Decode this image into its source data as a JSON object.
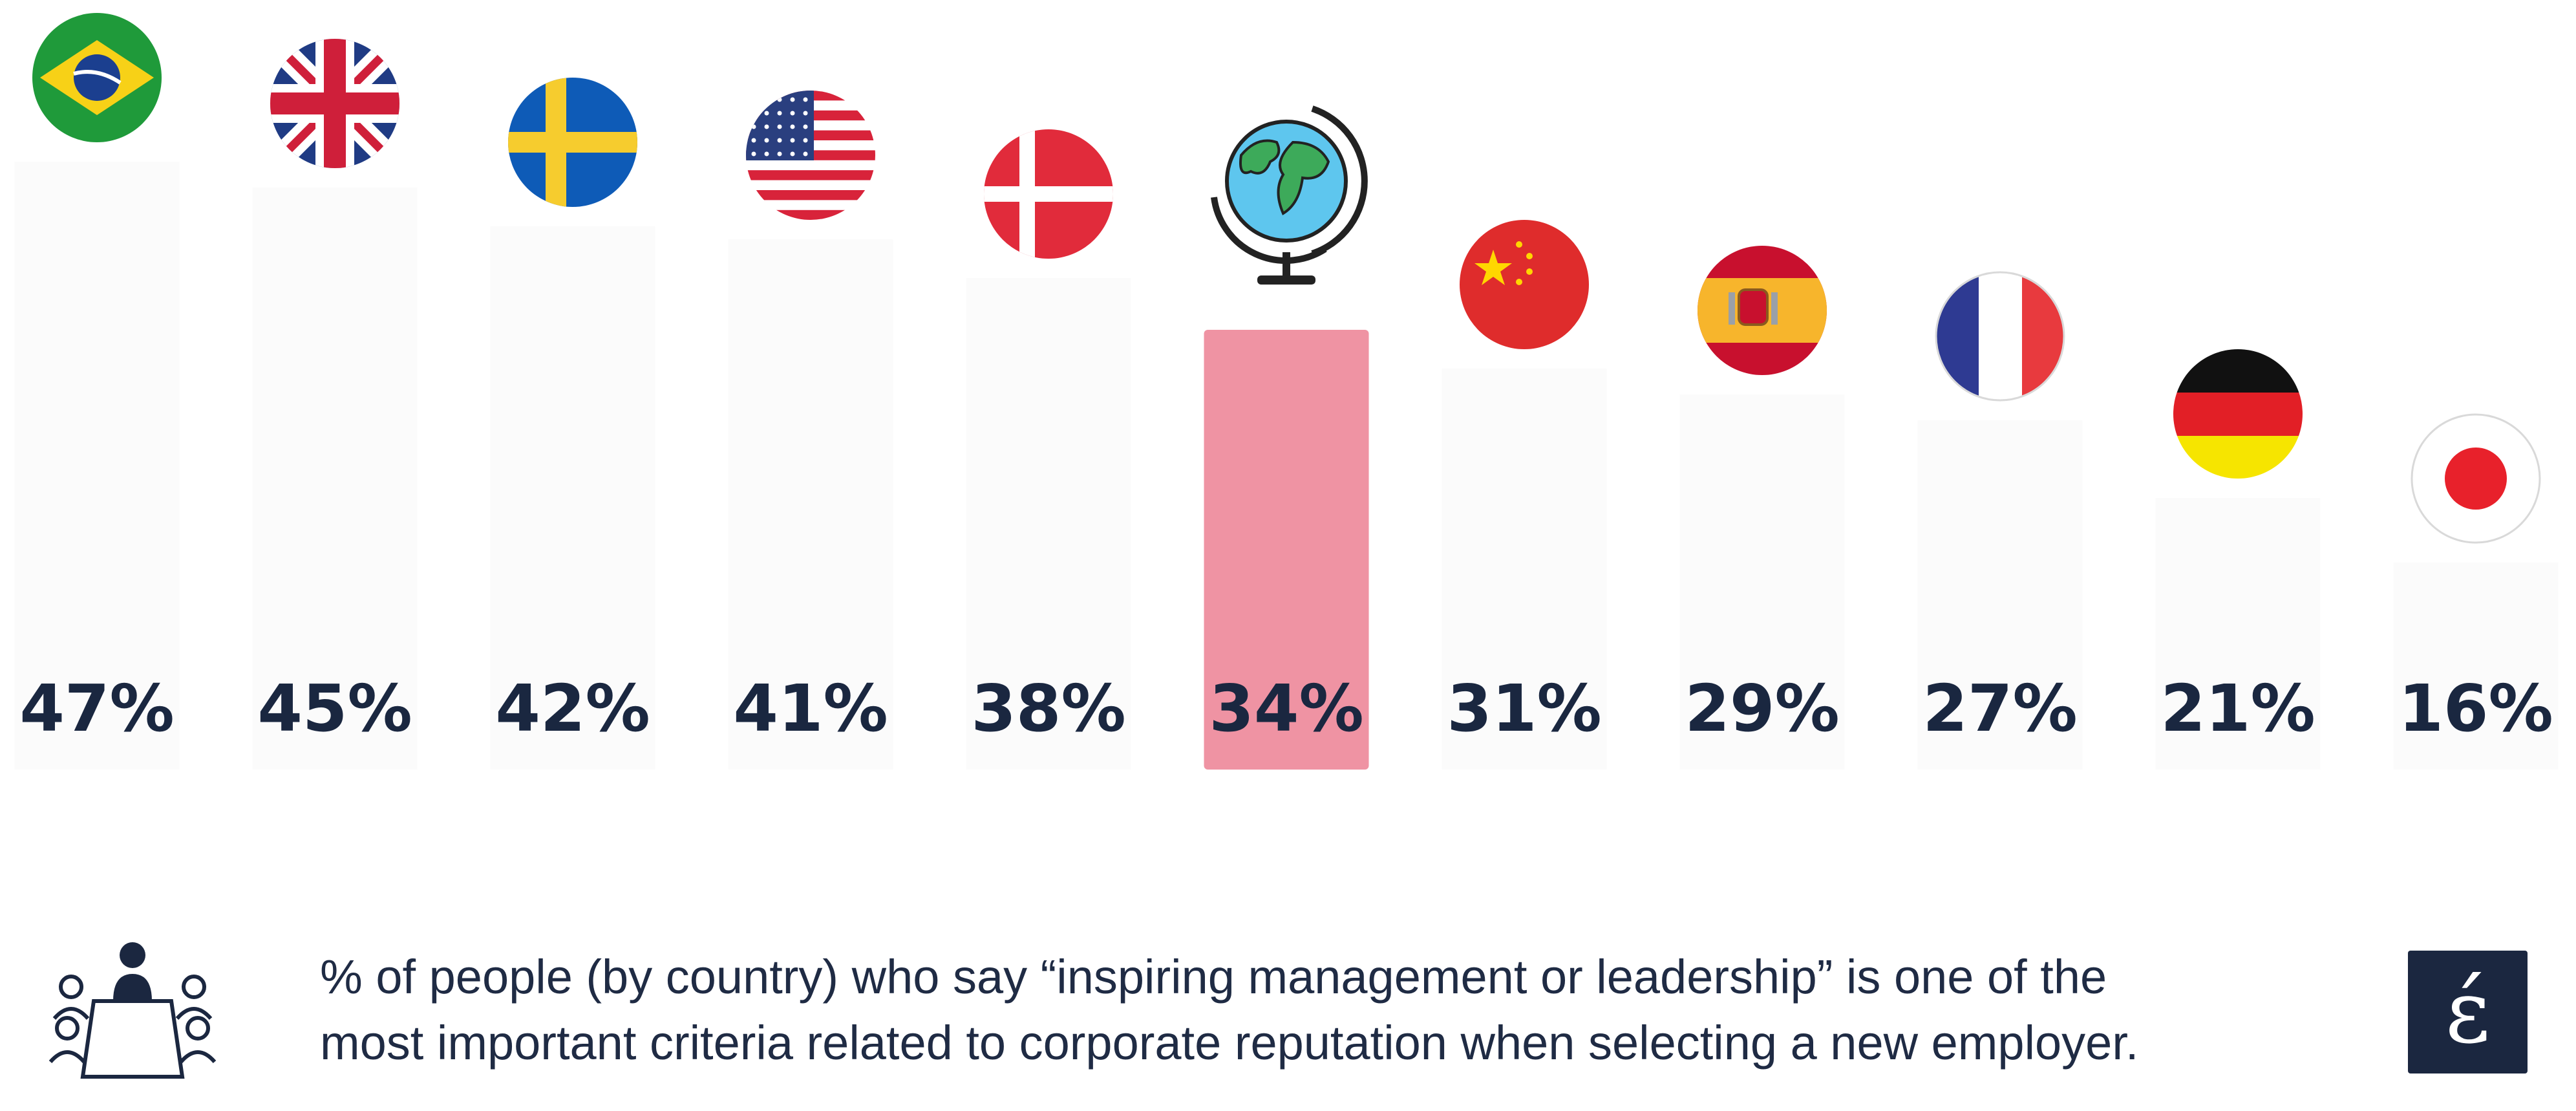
{
  "chart_data": {
    "type": "bar",
    "categories": [
      "Brazil",
      "United Kingdom",
      "Sweden",
      "United States",
      "Denmark",
      "Global",
      "China",
      "Spain",
      "France",
      "Germany",
      "Japan"
    ],
    "values": [
      47,
      45,
      42,
      41,
      38,
      34,
      31,
      29,
      27,
      21,
      16
    ],
    "value_labels": [
      "47%",
      "45%",
      "42%",
      "41%",
      "38%",
      "34%",
      "31%",
      "29%",
      "27%",
      "21%",
      "16%"
    ],
    "highlight_index": 5,
    "highlight_color": "#ef93a3",
    "bar_color": "#fbfbfb",
    "value_label_color": "#1a2740",
    "icons": [
      "brazil-flag-icon",
      "uk-flag-icon",
      "sweden-flag-icon",
      "usa-flag-icon",
      "denmark-flag-icon",
      "globe-icon",
      "china-flag-icon",
      "spain-flag-icon",
      "france-flag-icon",
      "germany-flag-icon",
      "japan-flag-icon"
    ],
    "ylim": [
      0,
      47
    ]
  },
  "caption": {
    "line1": "% of people (by country) who say “inspiring management or leadership” is one of the",
    "line2": "most important criteria related to corporate reputation when selecting a new employer."
  },
  "footer_icons": [
    "meeting-table-icon",
    "brand-logo"
  ],
  "logo_glyph": "έ"
}
